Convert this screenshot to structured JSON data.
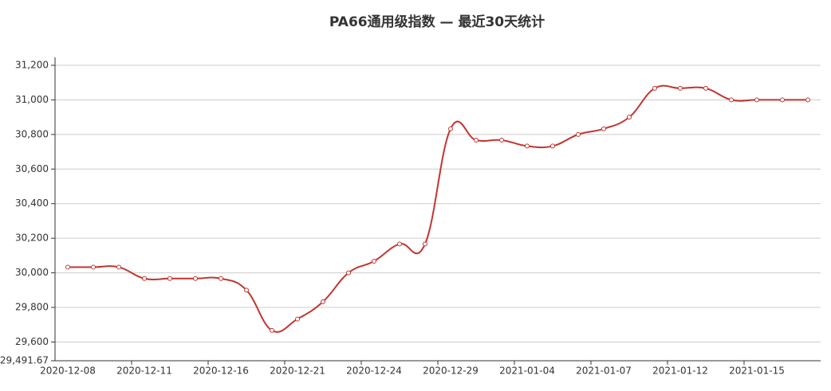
{
  "chart_data": {
    "type": "line",
    "title": "PA66通用级指数   —   最近30天统计",
    "categories": [
      "2020-12-08",
      null,
      null,
      "2020-12-11",
      null,
      null,
      "2020-12-16",
      null,
      null,
      "2020-12-21",
      null,
      null,
      "2020-12-24",
      null,
      null,
      "2020-12-29",
      null,
      null,
      "2021-01-04",
      null,
      null,
      "2021-01-07",
      null,
      null,
      "2021-01-12",
      null,
      null,
      "2021-01-15",
      null,
      null
    ],
    "series": [
      {
        "name": "PA66通用级",
        "color": "#c23531",
        "values": [
          30033,
          30033,
          30033,
          29967,
          29967,
          29967,
          29967,
          29900,
          29667,
          29733,
          29833,
          30000,
          30067,
          30167,
          30167,
          30833,
          30767,
          30767,
          30733,
          30733,
          30800,
          30833,
          30900,
          31067,
          31067,
          31067,
          31000,
          31000,
          31000,
          31000
        ]
      }
    ],
    "ylim": [
      29491.67,
      31200
    ],
    "yticks": [
      {
        "value": 29491.67,
        "label": "29,491.67"
      },
      {
        "value": 29600,
        "label": "29,600"
      },
      {
        "value": 29800,
        "label": "29,800"
      },
      {
        "value": 30000,
        "label": "30,000"
      },
      {
        "value": 30200,
        "label": "30,200"
      },
      {
        "value": 30400,
        "label": "30,400"
      },
      {
        "value": 30600,
        "label": "30,600"
      },
      {
        "value": 30800,
        "label": "30,800"
      },
      {
        "value": 31000,
        "label": "31,000"
      },
      {
        "value": 31200,
        "label": "31,200"
      }
    ],
    "grid": true
  }
}
